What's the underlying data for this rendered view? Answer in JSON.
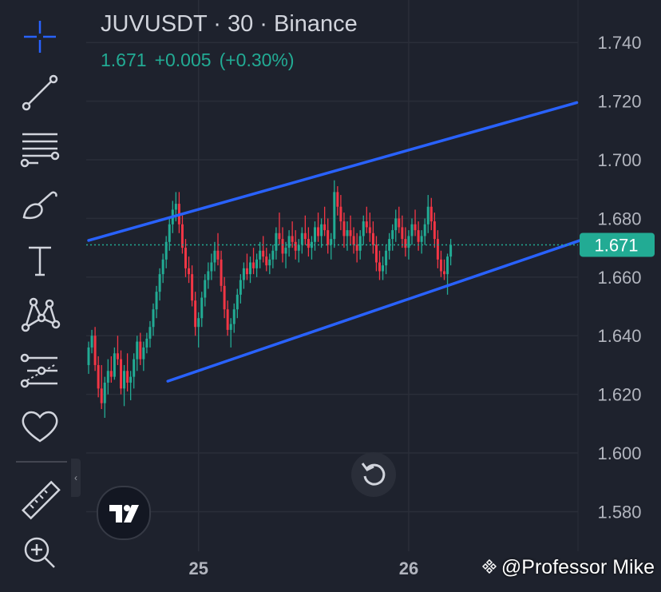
{
  "header": {
    "title": "JUVUSDT · 30 · Binance",
    "last": "1.671",
    "change": "+0.005",
    "change_pct": "(+0.30%)"
  },
  "toolbar": {
    "tools": [
      "crosshair-icon",
      "trend-line-icon",
      "fib-lines-icon",
      "brush-icon",
      "text-icon",
      "pattern-icon",
      "forecast-icon",
      "heart-icon",
      "ruler-icon",
      "zoom-in-icon"
    ]
  },
  "watermark": "@Professor Mike",
  "colors": {
    "up": "#22ab94",
    "down": "#f23645",
    "channel": "#2962ff",
    "bg": "#1e222d",
    "grid": "#2a2e39",
    "price_label": "#22ab94"
  },
  "chart_data": {
    "type": "candlestick",
    "symbol": "JUVUSDT",
    "interval": "30",
    "exchange": "Binance",
    "y_ticks": [
      1.58,
      1.6,
      1.62,
      1.64,
      1.66,
      1.68,
      1.7,
      1.72,
      1.74
    ],
    "y_tick_labels": [
      "1.580",
      "1.600",
      "1.620",
      "1.640",
      "1.660",
      "1.680",
      "1.700",
      "1.720",
      "1.740"
    ],
    "ylim": [
      1.5665,
      1.7545
    ],
    "x_ticks": [
      {
        "label": "25",
        "index": 34
      },
      {
        "label": "26",
        "index": 99
      }
    ],
    "x_range": [
      -0.5,
      154
    ],
    "last_price": 1.671,
    "last_price_label": "1.671",
    "channel": {
      "upper": [
        {
          "x": 0,
          "y": 1.6725
        },
        {
          "x": 151,
          "y": 1.7195
        }
      ],
      "lower": [
        {
          "x": 24.5,
          "y": 1.6245
        },
        {
          "x": 152,
          "y": 1.6725
        }
      ]
    },
    "ohlc": [
      [
        1.63,
        1.638,
        1.627,
        1.636
      ],
      [
        1.636,
        1.642,
        1.634,
        1.64
      ],
      [
        1.64,
        1.643,
        1.628,
        1.63
      ],
      [
        1.63,
        1.633,
        1.619,
        1.622
      ],
      [
        1.622,
        1.63,
        1.615,
        1.617
      ],
      [
        1.617,
        1.626,
        1.612,
        1.624
      ],
      [
        1.624,
        1.632,
        1.62,
        1.628
      ],
      [
        1.628,
        1.633,
        1.624,
        1.626
      ],
      [
        1.626,
        1.636,
        1.625,
        1.634
      ],
      [
        1.634,
        1.64,
        1.63,
        1.632
      ],
      [
        1.632,
        1.635,
        1.62,
        1.622
      ],
      [
        1.622,
        1.63,
        1.616,
        1.628
      ],
      [
        1.628,
        1.634,
        1.621,
        1.624
      ],
      [
        1.624,
        1.628,
        1.618,
        1.626
      ],
      [
        1.626,
        1.634,
        1.622,
        1.632
      ],
      [
        1.632,
        1.64,
        1.628,
        1.638
      ],
      [
        1.638,
        1.641,
        1.63,
        1.632
      ],
      [
        1.632,
        1.638,
        1.628,
        1.636
      ],
      [
        1.636,
        1.641,
        1.634,
        1.639
      ],
      [
        1.639,
        1.645,
        1.636,
        1.643
      ],
      [
        1.643,
        1.651,
        1.64,
        1.649
      ],
      [
        1.649,
        1.657,
        1.646,
        1.655
      ],
      [
        1.655,
        1.663,
        1.652,
        1.661
      ],
      [
        1.661,
        1.668,
        1.658,
        1.666
      ],
      [
        1.666,
        1.674,
        1.663,
        1.672
      ],
      [
        1.672,
        1.68,
        1.669,
        1.678
      ],
      [
        1.678,
        1.686,
        1.675,
        1.683
      ],
      [
        1.683,
        1.689,
        1.679,
        1.685
      ],
      [
        1.685,
        1.689,
        1.675,
        1.678
      ],
      [
        1.678,
        1.681,
        1.668,
        1.67
      ],
      [
        1.67,
        1.673,
        1.66,
        1.663
      ],
      [
        1.663,
        1.667,
        1.658,
        1.661
      ],
      [
        1.661,
        1.664,
        1.65,
        1.652
      ],
      [
        1.652,
        1.655,
        1.64,
        1.643
      ],
      [
        1.643,
        1.648,
        1.636,
        1.646
      ],
      [
        1.646,
        1.655,
        1.643,
        1.653
      ],
      [
        1.653,
        1.661,
        1.65,
        1.659
      ],
      [
        1.659,
        1.665,
        1.656,
        1.662
      ],
      [
        1.662,
        1.668,
        1.659,
        1.665
      ],
      [
        1.665,
        1.672,
        1.662,
        1.669
      ],
      [
        1.669,
        1.675,
        1.664,
        1.666
      ],
      [
        1.666,
        1.669,
        1.655,
        1.657
      ],
      [
        1.657,
        1.66,
        1.646,
        1.649
      ],
      [
        1.649,
        1.652,
        1.64,
        1.642
      ],
      [
        1.642,
        1.646,
        1.636,
        1.644
      ],
      [
        1.644,
        1.651,
        1.641,
        1.649
      ],
      [
        1.649,
        1.656,
        1.646,
        1.654
      ],
      [
        1.654,
        1.661,
        1.651,
        1.659
      ],
      [
        1.659,
        1.665,
        1.656,
        1.663
      ],
      [
        1.663,
        1.668,
        1.659,
        1.661
      ],
      [
        1.661,
        1.667,
        1.658,
        1.665
      ],
      [
        1.665,
        1.67,
        1.661,
        1.663
      ],
      [
        1.663,
        1.668,
        1.66,
        1.666
      ],
      [
        1.666,
        1.672,
        1.663,
        1.669
      ],
      [
        1.669,
        1.674,
        1.665,
        1.667
      ],
      [
        1.667,
        1.67,
        1.662,
        1.664
      ],
      [
        1.664,
        1.668,
        1.661,
        1.666
      ],
      [
        1.666,
        1.671,
        1.663,
        1.669
      ],
      [
        1.669,
        1.677,
        1.666,
        1.675
      ],
      [
        1.675,
        1.682,
        1.671,
        1.673
      ],
      [
        1.673,
        1.677,
        1.665,
        1.668
      ],
      [
        1.668,
        1.672,
        1.663,
        1.67
      ],
      [
        1.67,
        1.676,
        1.667,
        1.674
      ],
      [
        1.674,
        1.679,
        1.67,
        1.672
      ],
      [
        1.672,
        1.676,
        1.666,
        1.669
      ],
      [
        1.669,
        1.673,
        1.665,
        1.671
      ],
      [
        1.671,
        1.677,
        1.668,
        1.675
      ],
      [
        1.675,
        1.681,
        1.671,
        1.673
      ],
      [
        1.673,
        1.677,
        1.667,
        1.67
      ],
      [
        1.67,
        1.674,
        1.666,
        1.672
      ],
      [
        1.672,
        1.679,
        1.669,
        1.677
      ],
      [
        1.677,
        1.682,
        1.672,
        1.674
      ],
      [
        1.674,
        1.68,
        1.67,
        1.678
      ],
      [
        1.678,
        1.684,
        1.674,
        1.676
      ],
      [
        1.676,
        1.68,
        1.668,
        1.671
      ],
      [
        1.671,
        1.675,
        1.666,
        1.673
      ],
      [
        1.673,
        1.693,
        1.67,
        1.689
      ],
      [
        1.689,
        1.691,
        1.681,
        1.684
      ],
      [
        1.684,
        1.688,
        1.676,
        1.679
      ],
      [
        1.679,
        1.682,
        1.67,
        1.674
      ],
      [
        1.674,
        1.679,
        1.669,
        1.676
      ],
      [
        1.676,
        1.681,
        1.671,
        1.674
      ],
      [
        1.674,
        1.677,
        1.668,
        1.671
      ],
      [
        1.671,
        1.675,
        1.665,
        1.669
      ],
      [
        1.669,
        1.676,
        1.666,
        1.674
      ],
      [
        1.674,
        1.681,
        1.671,
        1.679
      ],
      [
        1.679,
        1.684,
        1.675,
        1.677
      ],
      [
        1.677,
        1.682,
        1.672,
        1.675
      ],
      [
        1.675,
        1.679,
        1.668,
        1.671
      ],
      [
        1.671,
        1.674,
        1.662,
        1.665
      ],
      [
        1.665,
        1.669,
        1.659,
        1.662
      ],
      [
        1.662,
        1.667,
        1.659,
        1.664
      ],
      [
        1.664,
        1.671,
        1.661,
        1.669
      ],
      [
        1.669,
        1.675,
        1.666,
        1.673
      ],
      [
        1.673,
        1.678,
        1.669,
        1.676
      ],
      [
        1.676,
        1.683,
        1.672,
        1.68
      ],
      [
        1.68,
        1.684,
        1.675,
        1.677
      ],
      [
        1.677,
        1.681,
        1.67,
        1.673
      ],
      [
        1.673,
        1.677,
        1.667,
        1.67
      ],
      [
        1.67,
        1.676,
        1.666,
        1.674
      ],
      [
        1.674,
        1.68,
        1.671,
        1.678
      ],
      [
        1.678,
        1.683,
        1.674,
        1.676
      ],
      [
        1.676,
        1.679,
        1.669,
        1.672
      ],
      [
        1.672,
        1.676,
        1.668,
        1.674
      ],
      [
        1.674,
        1.68,
        1.671,
        1.678
      ],
      [
        1.678,
        1.688,
        1.675,
        1.684
      ],
      [
        1.684,
        1.687,
        1.676,
        1.679
      ],
      [
        1.679,
        1.682,
        1.67,
        1.673
      ],
      [
        1.673,
        1.676,
        1.663,
        1.666
      ],
      [
        1.666,
        1.669,
        1.66,
        1.662
      ],
      [
        1.662,
        1.666,
        1.659,
        1.661
      ],
      [
        1.661,
        1.668,
        1.654,
        1.667
      ],
      [
        1.667,
        1.673,
        1.664,
        1.671
      ]
    ]
  }
}
